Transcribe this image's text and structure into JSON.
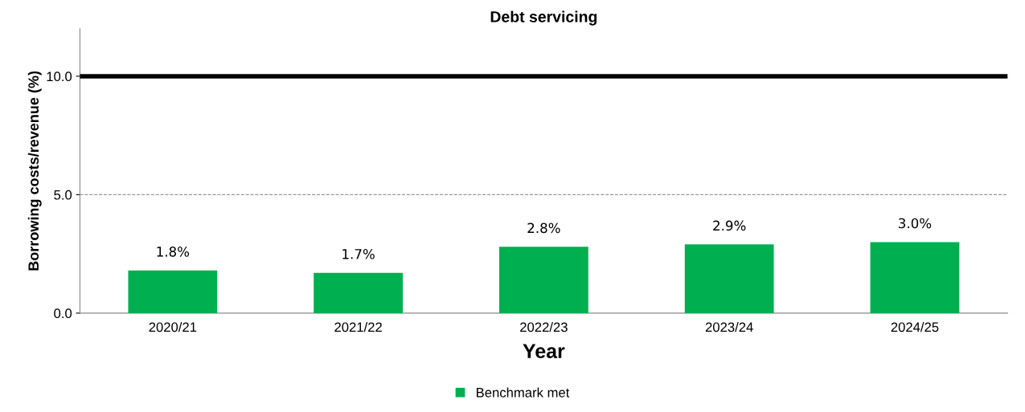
{
  "chart_data": {
    "type": "bar",
    "title": "Debt servicing",
    "xlabel": "Year",
    "ylabel": "Borrowing costs/revenue (%)",
    "categories": [
      "2020/21",
      "2021/22",
      "2022/23",
      "2023/24",
      "2024/25"
    ],
    "series": [
      {
        "name": "Benchmark met",
        "color": "#00b050",
        "values": [
          1.8,
          1.7,
          2.8,
          2.9,
          3.0
        ],
        "value_labels": [
          "1.8%",
          "1.7%",
          "2.8%",
          "2.9%",
          "3.0%"
        ]
      }
    ],
    "ylim": [
      0,
      12
    ],
    "yticks": [
      {
        "value": 0,
        "label": "0.0"
      },
      {
        "value": 5,
        "label": "5.0"
      },
      {
        "value": 10,
        "label": "10.0"
      }
    ],
    "legend": "bottom",
    "ref_lines": [
      {
        "axis": "y",
        "value": 10,
        "color": "#000000",
        "line_style": "solid"
      },
      {
        "axis": "y",
        "value": 5,
        "color": "#999999",
        "line_style": "dashed"
      }
    ]
  }
}
